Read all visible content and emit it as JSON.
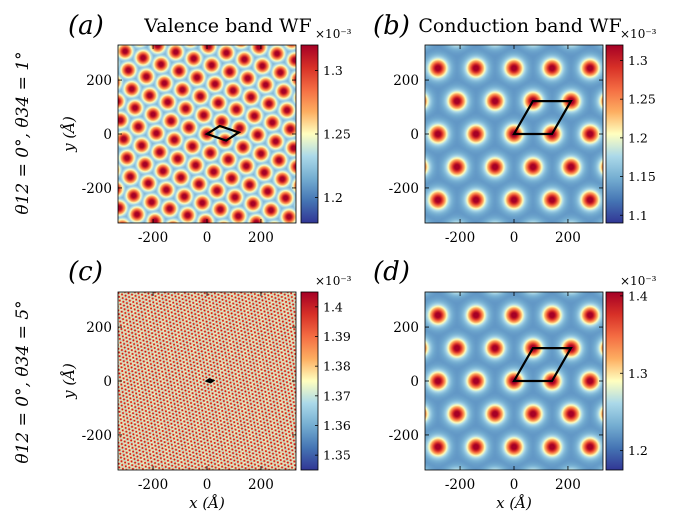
{
  "column_titles": [
    "Valence band WF",
    "Conduction band WF"
  ],
  "row_labels": [
    "θ12 = 0°, θ34 = 1°",
    "θ12 = 0°, θ34 = 5°"
  ],
  "colorbar_multiplier": "×10⁻³",
  "axis_labels": {
    "x": "x (Å)",
    "y": "y (Å)"
  },
  "colormap": [
    "#313695",
    "#4575b4",
    "#74add1",
    "#abd9e9",
    "#ffffbf",
    "#fdae61",
    "#f46d43",
    "#d73027",
    "#a50026"
  ],
  "chart_data": [
    {
      "type": "heatmap",
      "panel": "(a)",
      "title": "Valence band WF",
      "xlim": [
        -330,
        330
      ],
      "ylim": [
        -330,
        330
      ],
      "xticks": [
        -200,
        0,
        200
      ],
      "yticks": [
        -200,
        0,
        200
      ],
      "xticklabels": [
        "-200",
        "0",
        "200"
      ],
      "yticklabels": [
        "200",
        "0",
        "-200"
      ],
      "xlabel": "",
      "ylabel": "y (Å)",
      "colorbar": {
        "min": 1.18,
        "max": 1.32,
        "ticks": [
          1.2,
          1.25,
          1.3
        ],
        "ticklabels": [
          "1.2",
          "1.25",
          "1.3"
        ],
        "multiplier": "×10⁻³"
      },
      "pattern": "triangular lattice of maxima",
      "lattice_period": 71,
      "lattice_angle_deg": -20,
      "spot_sigma": 18,
      "unit_cell": {
        "a1": [
          71,
          -24
        ],
        "a2": [
          47,
          30
        ]
      }
    },
    {
      "type": "heatmap",
      "panel": "(b)",
      "title": "Conduction band WF",
      "xlim": [
        -330,
        330
      ],
      "ylim": [
        -330,
        330
      ],
      "xticks": [
        -200,
        0,
        200
      ],
      "yticks": [
        -200,
        0,
        200
      ],
      "xticklabels": [
        "-200",
        "0",
        "200"
      ],
      "yticklabels": [
        "200",
        "0",
        "-200"
      ],
      "xlabel": "",
      "ylabel": "",
      "colorbar": {
        "min": 1.09,
        "max": 1.32,
        "ticks": [
          1.1,
          1.15,
          1.2,
          1.25,
          1.3
        ],
        "ticklabels": [
          "1.1",
          "1.15",
          "1.2",
          "1.25",
          "1.3"
        ],
        "multiplier": "×10⁻³"
      },
      "pattern": "triangular lattice of maxima",
      "lattice_period": 141,
      "lattice_angle_deg": 0,
      "spot_sigma": 22,
      "unit_cell": {
        "a1": [
          141,
          0
        ],
        "a2": [
          70,
          122
        ]
      }
    },
    {
      "type": "heatmap",
      "panel": "(c)",
      "title": "",
      "xlim": [
        -330,
        330
      ],
      "ylim": [
        -330,
        330
      ],
      "xticks": [
        -200,
        0,
        200
      ],
      "yticks": [
        -200,
        0,
        200
      ],
      "xticklabels": [
        "-200",
        "0",
        "200"
      ],
      "yticklabels": [
        "200",
        "0",
        "-200"
      ],
      "xlabel": "x (Å)",
      "ylabel": "y (Å)",
      "colorbar": {
        "min": 1.345,
        "max": 1.405,
        "ticks": [
          1.35,
          1.36,
          1.37,
          1.38,
          1.39,
          1.4
        ],
        "ticklabels": [
          "1.35",
          "1.36",
          "1.37",
          "1.38",
          "1.39",
          "1.4"
        ],
        "multiplier": "×10⁻³"
      },
      "pattern": "triangular lattice of maxima",
      "lattice_period": 14,
      "lattice_angle_deg": -20,
      "spot_sigma": 3.8,
      "unit_cell": {
        "a1": [
          13,
          -5
        ],
        "a2": [
          9,
          6
        ]
      }
    },
    {
      "type": "heatmap",
      "panel": "(d)",
      "title": "",
      "xlim": [
        -330,
        330
      ],
      "ylim": [
        -330,
        330
      ],
      "xticks": [
        -200,
        0,
        200
      ],
      "yticks": [
        -200,
        0,
        200
      ],
      "xticklabels": [
        "-200",
        "0",
        "200"
      ],
      "yticklabels": [
        "200",
        "0",
        "-200"
      ],
      "xlabel": "x (Å)",
      "ylabel": "",
      "colorbar": {
        "min": 1.175,
        "max": 1.405,
        "ticks": [
          1.2,
          1.3,
          1.4
        ],
        "ticklabels": [
          "1.2",
          "1.3",
          "1.4"
        ],
        "multiplier": "×10⁻³"
      },
      "pattern": "triangular lattice of maxima",
      "lattice_period": 141,
      "lattice_angle_deg": 0,
      "spot_sigma": 22,
      "unit_cell": {
        "a1": [
          141,
          0
        ],
        "a2": [
          70,
          122
        ]
      }
    }
  ]
}
